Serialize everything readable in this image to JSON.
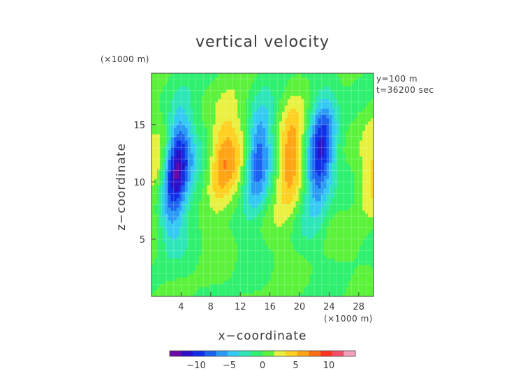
{
  "chart_data": {
    "type": "heatmap",
    "title": "vertical velocity",
    "xlabel": "x−coordinate",
    "ylabel": "z−coordinate",
    "x_unit": "(×1000 m)",
    "y_unit": "(×1000 m)",
    "annotations": [
      "y=100 m",
      "t=36200 sec"
    ],
    "xlim": [
      0,
      30
    ],
    "ylim": [
      0,
      19.5
    ],
    "xticks": [
      4,
      8,
      12,
      16,
      20,
      24,
      28
    ],
    "xtick_labels": [
      "4",
      "8",
      "12",
      "16",
      "20",
      "24",
      "28"
    ],
    "yticks": [
      5,
      10,
      15
    ],
    "ytick_labels": [
      "5",
      "10",
      "15"
    ],
    "grid": true,
    "colorbar": {
      "range": [
        -14,
        14
      ],
      "ticks": [
        -10,
        -5,
        0,
        5,
        10
      ],
      "tick_labels": [
        "−10",
        "−5",
        "0",
        "5",
        "10"
      ],
      "colors": [
        "#6a0aa8",
        "#2b10c8",
        "#1030e8",
        "#1c62f0",
        "#2a9af4",
        "#34caf4",
        "#2ee6b8",
        "#30f070",
        "#5cf23c",
        "#e8f040",
        "#ffd020",
        "#ffa414",
        "#ff6e10",
        "#ff3420",
        "#f0506a",
        "#f4a0bc"
      ]
    },
    "features": [
      {
        "type": "updraft",
        "x": 0.9,
        "z": 11,
        "w": 4
      },
      {
        "type": "downdraft",
        "x": 3.3,
        "z": 11,
        "w": -13
      },
      {
        "type": "updraft",
        "x": 9.6,
        "z": 11.8,
        "w": 6
      },
      {
        "type": "downdraft",
        "x": 14.3,
        "z": 12,
        "w": -9
      },
      {
        "type": "updraft",
        "x": 18.8,
        "z": 12,
        "w": 7
      },
      {
        "type": "downdraft",
        "x": 22.8,
        "z": 12.4,
        "w": -11
      },
      {
        "type": "updraft",
        "x": 30,
        "z": 11,
        "w": 4
      },
      {
        "type": "updraft",
        "x": 12.2,
        "z": 12.4,
        "w": 3
      },
      {
        "type": "downdraft",
        "x": 6,
        "z": 10,
        "w": -1.5
      }
    ]
  }
}
